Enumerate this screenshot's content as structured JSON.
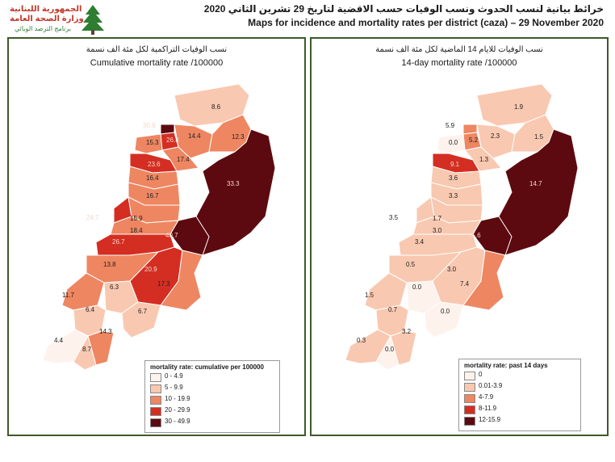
{
  "header": {
    "logo_line1": "الجمهورية اللبنانية",
    "logo_line2": "وزارة الصحة العامة",
    "logo_line3": "برنامج الترصد الوبائي",
    "title_ar": "خرائط بيانية لنسب الحدوث ونسب الوفيات حسب الاقضية لتاريخ 29 تشرين الثاني 2020",
    "title_en": "Maps for incidence and mortality rates per district (caza) – 29 November 2020"
  },
  "colors": {
    "frame": "#3d5a2a",
    "class0": "#fdf2ec",
    "class1": "#f9c8b0",
    "class2": "#ee8661",
    "class3": "#d42e23",
    "class4": "#5c0a0f"
  },
  "left_panel": {
    "title_ar": "نسب الوفيات التراكمية لكل مئة الف نسمة",
    "title_en": "Cumulative mortality rate /100000",
    "legend": {
      "title": "mortality rate: cumulative per 100000",
      "items": [
        {
          "label": "0 - 4.9",
          "color": "#fdf2ec"
        },
        {
          "label": "5 - 9.9",
          "color": "#f9c8b0"
        },
        {
          "label": "10 - 19.9",
          "color": "#ee8661"
        },
        {
          "label": "20 - 29.9",
          "color": "#d42e23"
        },
        {
          "label": "30 - 49.9",
          "color": "#5c0a0f"
        }
      ]
    },
    "district_values": [
      "8.6",
      "30.8",
      "26.3",
      "14.4",
      "12.3",
      "15.3",
      "17.4",
      "23.6",
      "33.3",
      "16.4",
      "16.7",
      "24.7",
      "15.9",
      "18.4",
      "40.7",
      "26.7",
      "13.8",
      "20.9",
      "17.3",
      "11.7",
      "6.3",
      "6.4",
      "6.7",
      "14.3",
      "4.4",
      "8.7"
    ]
  },
  "right_panel": {
    "title_ar": "نسب الوفيات للايام 14 الماضية لكل مئة الف نسمة",
    "title_en": "14-day mortality rate /100000",
    "legend": {
      "title": "mortality rate: past 14 days",
      "items": [
        {
          "label": "0",
          "color": "#fdf2ec"
        },
        {
          "label": "0.01-3.9",
          "color": "#f9c8b0"
        },
        {
          "label": "4-7.9",
          "color": "#ee8661"
        },
        {
          "label": "8-11.9",
          "color": "#d42e23"
        },
        {
          "label": "12-15.9",
          "color": "#5c0a0f"
        }
      ]
    },
    "district_values": [
      "1.9",
      "5.9",
      "5.2",
      "2.3",
      "1.5",
      "0.0",
      "1.3",
      "9.1",
      "14.7",
      "3.6",
      "3.3",
      "3.5",
      "1.7",
      "3.0",
      "15.6",
      "3.4",
      "0.5",
      "3.0",
      "7.4",
      "1.5",
      "0.0",
      "0.7",
      "0.0",
      "3.2",
      "0.3",
      "0.0"
    ]
  }
}
